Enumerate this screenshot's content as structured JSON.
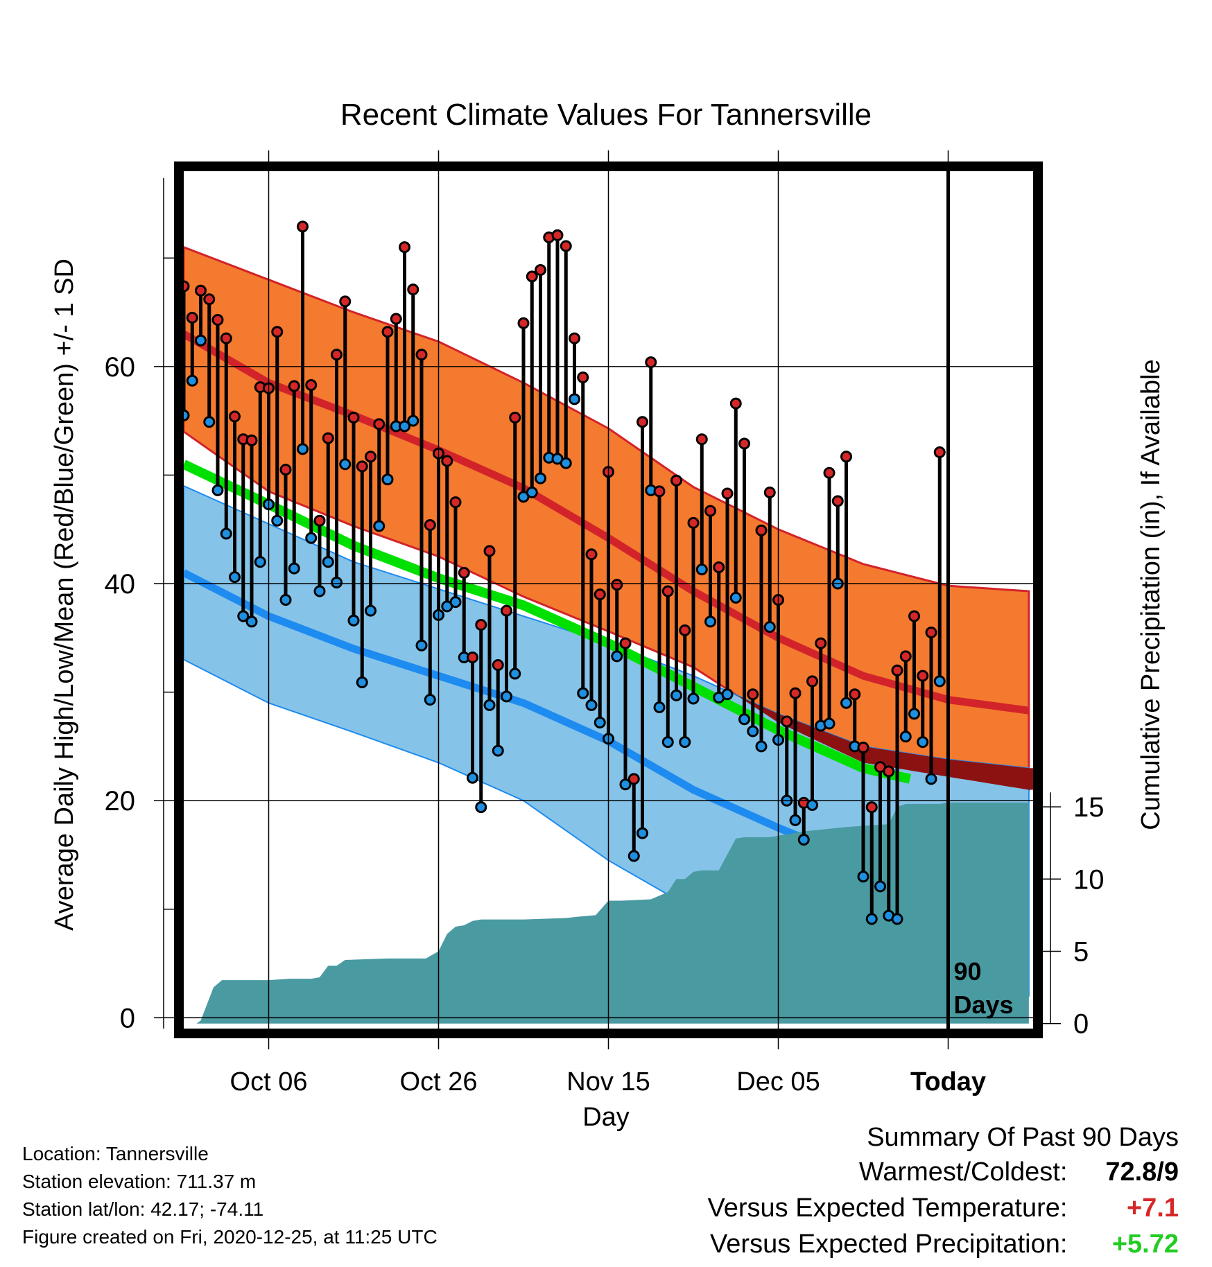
{
  "chart_data": {
    "type": "line",
    "title": "Recent Climate Values For Tannersville",
    "xlabel": "Day",
    "ylabel": "Average Daily High/Low/Mean (Red/Blue/Green) +/- 1 SD",
    "y2label": "Cumulative Precipitation (in), If Available",
    "xlim": [
      -11,
      9
    ],
    "ylim": [
      -1,
      78
    ],
    "y2lim": [
      -0.35,
      59
    ],
    "x_ticks": [
      {
        "day": -9,
        "label": "Oct 06"
      },
      {
        "day": -5,
        "label": "Oct 26"
      },
      {
        "day": -1,
        "label": "Nov 15"
      },
      {
        "day": 3,
        "label": "Dec 05"
      },
      {
        "day": 7,
        "label": "Today"
      }
    ],
    "y_ticks": [
      0,
      20,
      40,
      60
    ],
    "y2_ticks": [
      0,
      5,
      10,
      15
    ],
    "today_marker_label": [
      "90",
      "Days"
    ],
    "grid": true,
    "colors": {
      "high_band": "#f47a2f",
      "high_line": "#d2232a",
      "high_edge": "#d2232a",
      "low_band": "#86c3e8",
      "low_line": "#1e8bf0",
      "low_edge": "#1e8bf0",
      "overlap": "#8c1212",
      "mean": "#00e000",
      "precip": "#4a9aa2",
      "high_dot": "#d62728",
      "low_dot": "#1f8fe0",
      "warm_text": "#d62728",
      "wet_text": "#22cc22"
    },
    "normal_high": {
      "x": [
        -11,
        -9,
        -7,
        -5,
        -3,
        -1,
        1,
        3,
        5,
        7,
        8.9
      ],
      "mean": [
        63,
        58.5,
        55.5,
        52.3,
        48.8,
        44.2,
        39.3,
        35,
        31.5,
        29.3,
        28.3
      ],
      "upper": [
        71,
        68,
        65,
        62.3,
        58.5,
        54.3,
        48.9,
        45,
        41.8,
        39.8,
        39.3
      ],
      "lower": [
        54,
        48.5,
        45.3,
        42.5,
        38.8,
        35.6,
        32.3,
        27.2,
        23.5,
        22.2,
        21
      ]
    },
    "normal_low": {
      "x": [
        -11,
        -9,
        -7,
        -5,
        -3,
        -1,
        1,
        3,
        5,
        7,
        8.9
      ],
      "mean": [
        41,
        37,
        34,
        31.5,
        29,
        25.5,
        21,
        17.5,
        14.3,
        12.2,
        11.2
      ],
      "upper": [
        49,
        45.5,
        42,
        39.5,
        37,
        34.5,
        31.5,
        28,
        25,
        23.8,
        23
      ],
      "lower": [
        33,
        29,
        26.3,
        23.5,
        20,
        14.5,
        10,
        7,
        4.5,
        3,
        2
      ]
    },
    "normal_mean": {
      "x": [
        -11,
        -9,
        -7,
        -5,
        -3,
        -1,
        1,
        3,
        5,
        6.1
      ],
      "values": [
        51,
        47.3,
        43.5,
        40.5,
        38,
        34.5,
        30.5,
        26.5,
        23,
        22
      ]
    },
    "daily": {
      "high": [
        67.4,
        64.5,
        67.0,
        66.2,
        64.3,
        62.6,
        55.4,
        53.3,
        53.2,
        58.1,
        58.0,
        63.2,
        50.5,
        58.2,
        72.9,
        58.3,
        45.8,
        53.4,
        61.1,
        66.0,
        55.3,
        50.8,
        51.7,
        54.7,
        63.2,
        64.4,
        71.0,
        67.1,
        61.1,
        45.4,
        52.0,
        51.3,
        47.5,
        41.0,
        33.2,
        36.2,
        43.0,
        32.5,
        37.5,
        55.3,
        64.0,
        68.3,
        68.9,
        71.9,
        72.1,
        71.1,
        62.6,
        59.0,
        42.7,
        39.0,
        50.3,
        39.9,
        34.5,
        22.0,
        54.9,
        60.4,
        48.5,
        39.3,
        49.5,
        35.7,
        45.6,
        53.3,
        46.7,
        41.5,
        48.3,
        56.6,
        52.9,
        29.8,
        44.9,
        48.4,
        38.5,
        27.3,
        29.9,
        19.8,
        31.0,
        34.5,
        50.2,
        47.6,
        51.7,
        29.8,
        24.9,
        19.4,
        23.1,
        22.7,
        32.0,
        33.3,
        37.0,
        31.5,
        35.5,
        52.1
      ],
      "low": [
        55.5,
        58.7,
        62.4,
        54.9,
        48.6,
        44.6,
        40.6,
        37.0,
        36.5,
        42.0,
        47.3,
        45.8,
        38.5,
        41.4,
        52.4,
        44.2,
        39.3,
        42.0,
        40.1,
        51.0,
        36.6,
        30.9,
        37.5,
        45.3,
        49.6,
        54.5,
        54.5,
        55.0,
        34.3,
        29.3,
        37.1,
        37.9,
        38.3,
        33.2,
        22.1,
        19.4,
        28.8,
        24.6,
        29.6,
        31.7,
        48.0,
        48.4,
        49.7,
        51.6,
        51.5,
        51.1,
        57.0,
        29.9,
        28.8,
        27.2,
        25.7,
        33.3,
        21.5,
        14.9,
        17.0,
        48.6,
        28.6,
        25.4,
        29.7,
        25.4,
        29.4,
        41.3,
        36.5,
        29.5,
        29.8,
        38.7,
        27.5,
        26.4,
        25.0,
        36.0,
        25.6,
        20.0,
        18.2,
        16.4,
        19.6,
        26.9,
        27.1,
        40.0,
        29.0,
        25.0,
        13.0,
        9.1,
        12.1,
        9.4,
        9.1,
        25.9,
        28.0,
        25.4,
        22.0,
        31.0
      ],
      "start_day": -11,
      "step_days": 0.2
    },
    "precip": {
      "x": [
        -11,
        -10.7,
        -10.6,
        -10.3,
        -10.1,
        -9.5,
        -9,
        -8.5,
        -8,
        -7.8,
        -7.6,
        -7.4,
        -7.2,
        -6.2,
        -5.3,
        -5.0,
        -4.8,
        -4.6,
        -4.4,
        -4.2,
        -4.0,
        -3.0,
        -2.0,
        -1.7,
        -1.3,
        -1.0,
        -0.7,
        0.0,
        0.4,
        0.6,
        0.8,
        1.0,
        1.2,
        1.6,
        2.0,
        2.2,
        2.8,
        3.0,
        3.6,
        4.6,
        5.6,
        5.8,
        6.0,
        6.8,
        7.0,
        8.0,
        8.9
      ],
      "values": [
        0,
        0,
        0.2,
        2.5,
        3,
        3,
        3,
        3.1,
        3.1,
        3.2,
        4,
        4,
        4.4,
        4.5,
        4.5,
        5,
        6.2,
        6.7,
        6.8,
        7.1,
        7.2,
        7.2,
        7.3,
        7.4,
        7.5,
        8.5,
        8.5,
        8.6,
        9.1,
        10,
        10,
        10.5,
        10.6,
        10.6,
        12.8,
        12.9,
        12.9,
        13.0,
        13.3,
        13.6,
        13.8,
        15.0,
        15.2,
        15.2,
        15.3,
        15.3,
        15.3
      ],
      "today_value": 15.3
    }
  },
  "info": {
    "location": "Location: Tannersville",
    "elevation": "Station elevation: 711.37 m",
    "latlon": "Station lat/lon: 42.17; -74.11",
    "created": "Figure created on Fri, 2020-12-25, at 11:25 UTC"
  },
  "summary": {
    "title": "Summary Of Past 90 Days",
    "warm_cold_label": "Warmest/Coldest:",
    "warm_cold_value": "72.8/9",
    "temp_label": "Versus Expected Temperature:",
    "temp_value": "+7.1",
    "precip_label": "Versus Expected Precipitation:",
    "precip_value": "+5.72"
  }
}
